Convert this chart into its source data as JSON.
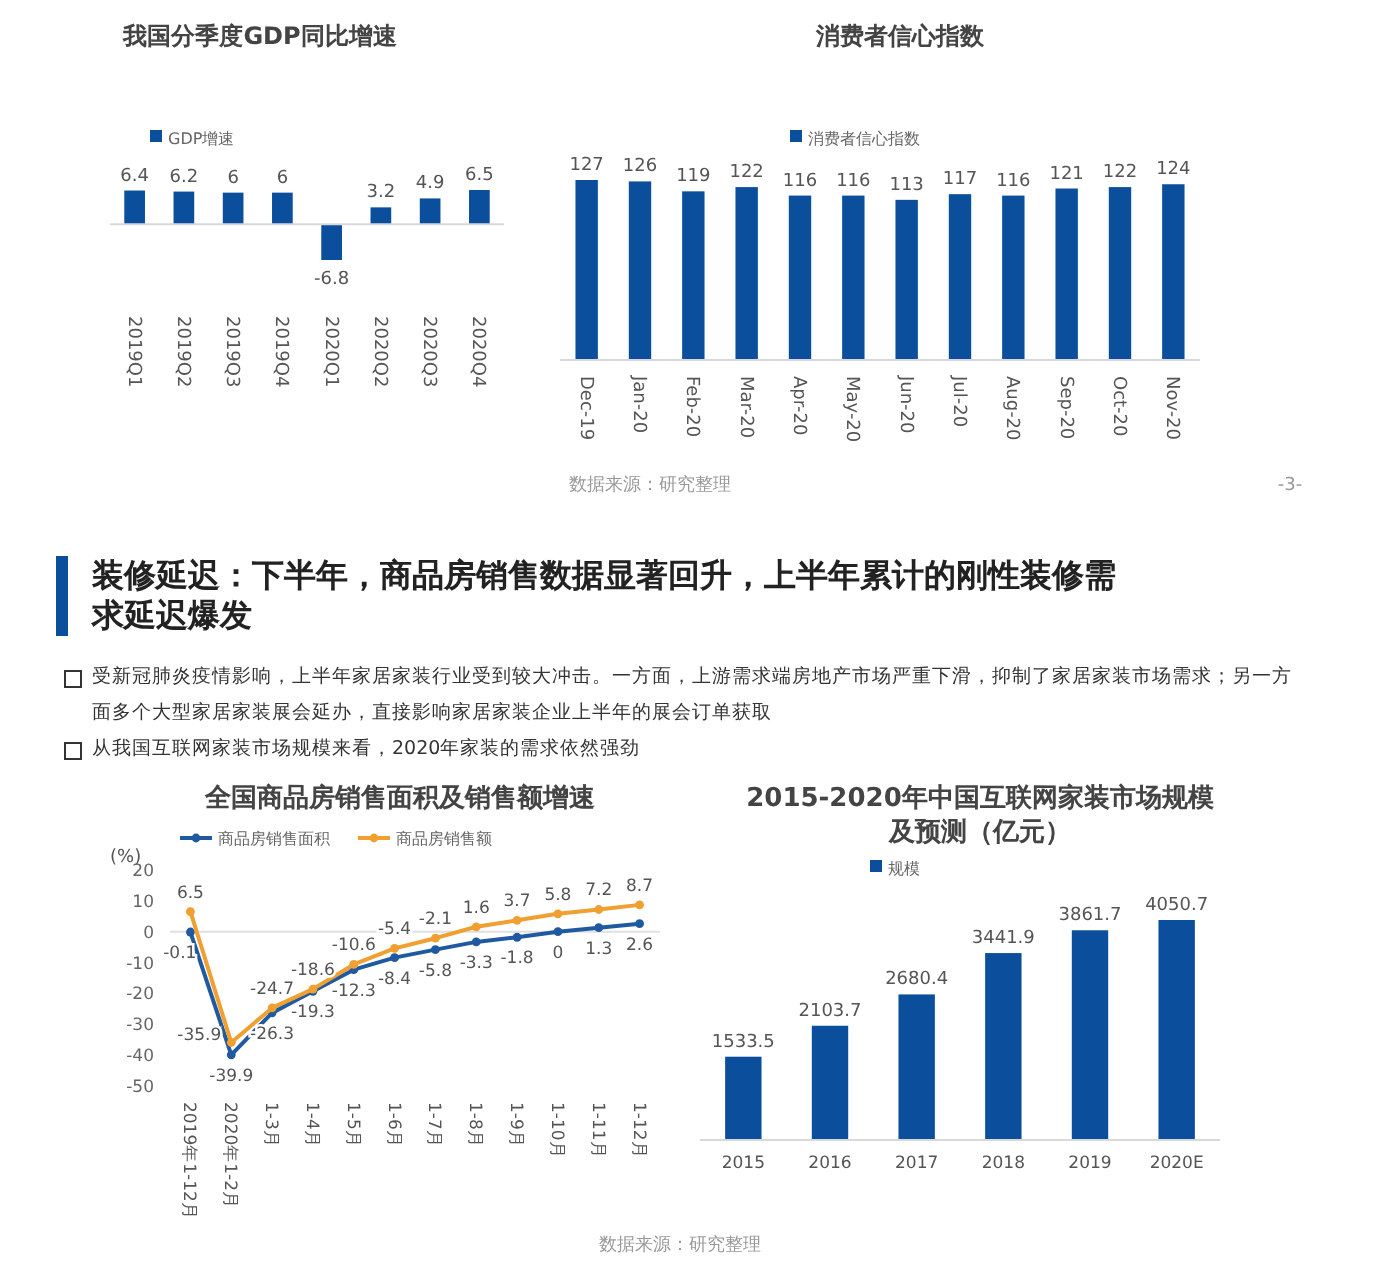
{
  "chart_data": [
    {
      "type": "bar",
      "title": "我国分季度GDP同比增速",
      "categories": [
        "2019Q1",
        "2019Q2",
        "2019Q3",
        "2019Q4",
        "2020Q1",
        "2020Q2",
        "2020Q3",
        "2020Q4"
      ],
      "data_labels": true,
      "legend": "top",
      "series": [
        {
          "name": "GDP增速",
          "color": "#0b4f9c",
          "values": [
            6.4,
            6.2,
            6.0,
            6.0,
            -6.8,
            3.2,
            4.9,
            6.5
          ]
        }
      ]
    },
    {
      "type": "bar",
      "title": "消费者信心指数",
      "categories": [
        "Dec-19",
        "Jan-20",
        "Feb-20",
        "Mar-20",
        "Apr-20",
        "May-20",
        "Jun-20",
        "Jul-20",
        "Aug-20",
        "Sep-20",
        "Oct-20",
        "Nov-20"
      ],
      "data_labels": true,
      "legend": "top",
      "series": [
        {
          "name": "消费者信心指数",
          "color": "#0b4f9c",
          "values": [
            127,
            126,
            119,
            122,
            116,
            116,
            113,
            117,
            116,
            121,
            122,
            124
          ]
        }
      ],
      "annotations": [
        "数据来源：研究整理",
        "-3-"
      ]
    },
    {
      "type": "other",
      "title": "装修延迟：下半年，商品房销售数据显著回升，上半年累计的刚性装修需求延迟爆发",
      "annotations": [
        "受新冠肺炎疫情影响，上半年家居家装行业受到较大冲击。一方面，上游需求端房地产市场严重下滑，抑制了家居家装市场需求；另一方面多个大型家居家装展会延办，直接影响家居家装企业上半年的展会订单获取",
        "从我国互联网家装市场规模来看，2020年家装的需求依然强劲"
      ]
    },
    {
      "type": "line",
      "title": "全国商品房销售面积及销售额增速",
      "ylabel": "(%)",
      "categories": [
        "2019年1-12月",
        "2020年1-2月",
        "1-3月",
        "1-4月",
        "1-5月",
        "1-6月",
        "1-7月",
        "1-8月",
        "1-9月",
        "1-10月",
        "1-11月",
        "1-12月"
      ],
      "ylim": [
        -50,
        20
      ],
      "yticks": [
        -50,
        -40,
        -30,
        -20,
        -10,
        0,
        10,
        20
      ],
      "data_labels": true,
      "legend": "top",
      "marker": "circle",
      "series": [
        {
          "name": "商品房销售面积",
          "color": "#1f5aa0",
          "values": [
            -0.1,
            -39.9,
            -26.3,
            -19.3,
            -12.3,
            -8.4,
            -5.8,
            -3.3,
            -1.8,
            0,
            1.3,
            2.6
          ]
        },
        {
          "name": "商品房销售额",
          "color": "#f0a030",
          "values": [
            6.5,
            -35.9,
            -24.7,
            -18.6,
            -10.6,
            -5.4,
            -2.1,
            1.6,
            3.7,
            5.8,
            7.2,
            8.7
          ]
        }
      ]
    },
    {
      "type": "bar",
      "title": "2015-2020年中国互联网家装市场规模及预测（亿元）",
      "categories": [
        "2015",
        "2016",
        "2017",
        "2018",
        "2019",
        "2020E"
      ],
      "data_labels": true,
      "legend": "top",
      "series": [
        {
          "name": "规模",
          "color": "#0b4f9c",
          "values": [
            1533.5,
            2103.7,
            2680.4,
            3441.9,
            3861.7,
            4050.7
          ]
        }
      ],
      "annotations": [
        "数据来源：研究整理"
      ]
    }
  ]
}
